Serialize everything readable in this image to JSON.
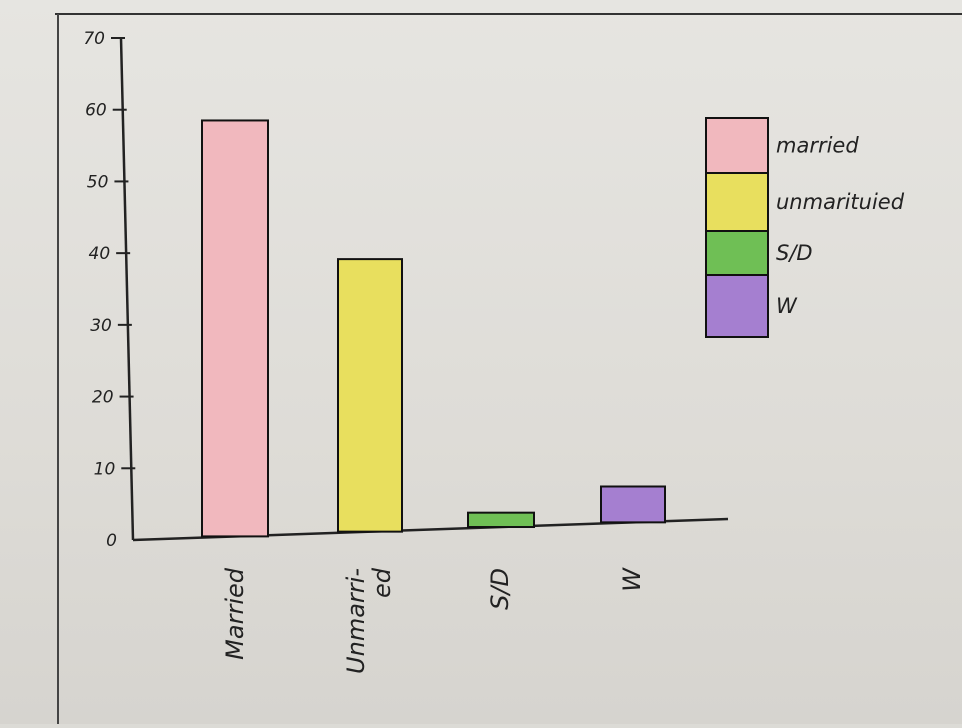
{
  "chart_data": {
    "type": "bar",
    "categories": [
      "Married",
      "Unmarried",
      "S/D",
      "W"
    ],
    "category_labels": [
      "Married",
      "Unmarri-ed",
      "S/D",
      "W"
    ],
    "values": [
      58,
      38,
      2,
      5
    ],
    "yticks": [
      "0",
      "10",
      "20",
      "30",
      "40",
      "50",
      "60",
      "70"
    ],
    "ylim": [
      0,
      70
    ],
    "colors": [
      "#f1b8be",
      "#e8df5e",
      "#6fbf55",
      "#a57fd0"
    ],
    "legend": {
      "placement": "top-right",
      "entries": [
        "married",
        "unmarituied",
        "S/D",
        "W"
      ]
    }
  }
}
